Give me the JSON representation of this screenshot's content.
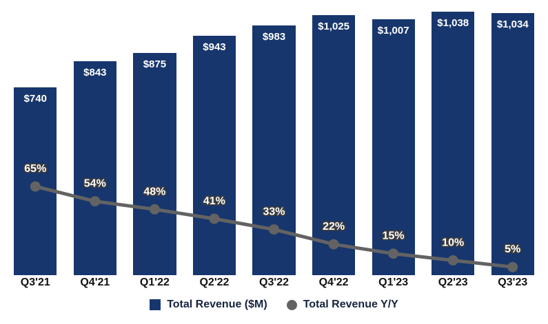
{
  "chart_data": {
    "type": "bar",
    "title": "",
    "xlabel": "",
    "ylabel": "",
    "categories": [
      "Q3'21",
      "Q4'21",
      "Q1'22",
      "Q2'22",
      "Q3'22",
      "Q4'22",
      "Q1'23",
      "Q2'23",
      "Q3'23"
    ],
    "series": [
      {
        "name": "Total Revenue ($M)",
        "type": "bar",
        "values": [
          740,
          843,
          875,
          943,
          983,
          1025,
          1007,
          1038,
          1034
        ],
        "data_labels": [
          "$740",
          "$843",
          "$875",
          "$943",
          "$983",
          "$1,025",
          "$1,007",
          "$1,038",
          "$1,034"
        ],
        "color": "#17366D"
      },
      {
        "name": "Total Revenue Y/Y",
        "type": "line",
        "values": [
          65,
          54,
          48,
          41,
          33,
          22,
          15,
          10,
          5
        ],
        "data_labels": [
          "65%",
          "54%",
          "48%",
          "41%",
          "33%",
          "22%",
          "15%",
          "10%",
          "5%"
        ],
        "color": "#636363"
      }
    ],
    "ylim": [
      0,
      1100
    ],
    "y2lim": [
      0,
      200
    ],
    "grid": false,
    "legend_position": "bottom"
  },
  "legend": {
    "items": [
      {
        "label": "Total Revenue ($M)",
        "marker": "square",
        "color": "#17366D"
      },
      {
        "label": "Total Revenue Y/Y",
        "marker": "circle",
        "color": "#636363"
      }
    ]
  }
}
